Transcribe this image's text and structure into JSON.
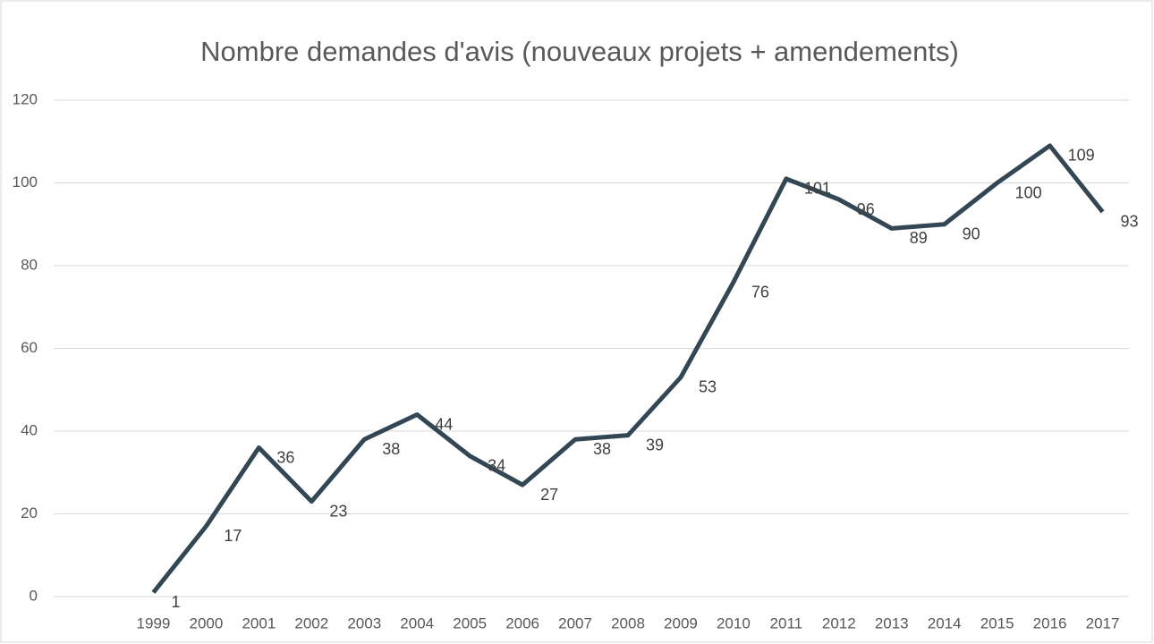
{
  "chart_data": {
    "type": "line",
    "title": "Nombre demandes d'avis (nouveaux projets + amendements)",
    "categories": [
      "1999",
      "2000",
      "2001",
      "2002",
      "2003",
      "2004",
      "2005",
      "2006",
      "2007",
      "2008",
      "2009",
      "2010",
      "2011",
      "2012",
      "2013",
      "2014",
      "2015",
      "2016",
      "2017"
    ],
    "values": [
      1,
      17,
      36,
      23,
      38,
      44,
      34,
      27,
      38,
      39,
      53,
      76,
      101,
      96,
      89,
      90,
      100,
      109,
      93
    ],
    "color": "#334654",
    "ylim": [
      0,
      120
    ],
    "yticks": [
      0,
      20,
      40,
      60,
      80,
      100,
      120
    ],
    "grid": true
  }
}
